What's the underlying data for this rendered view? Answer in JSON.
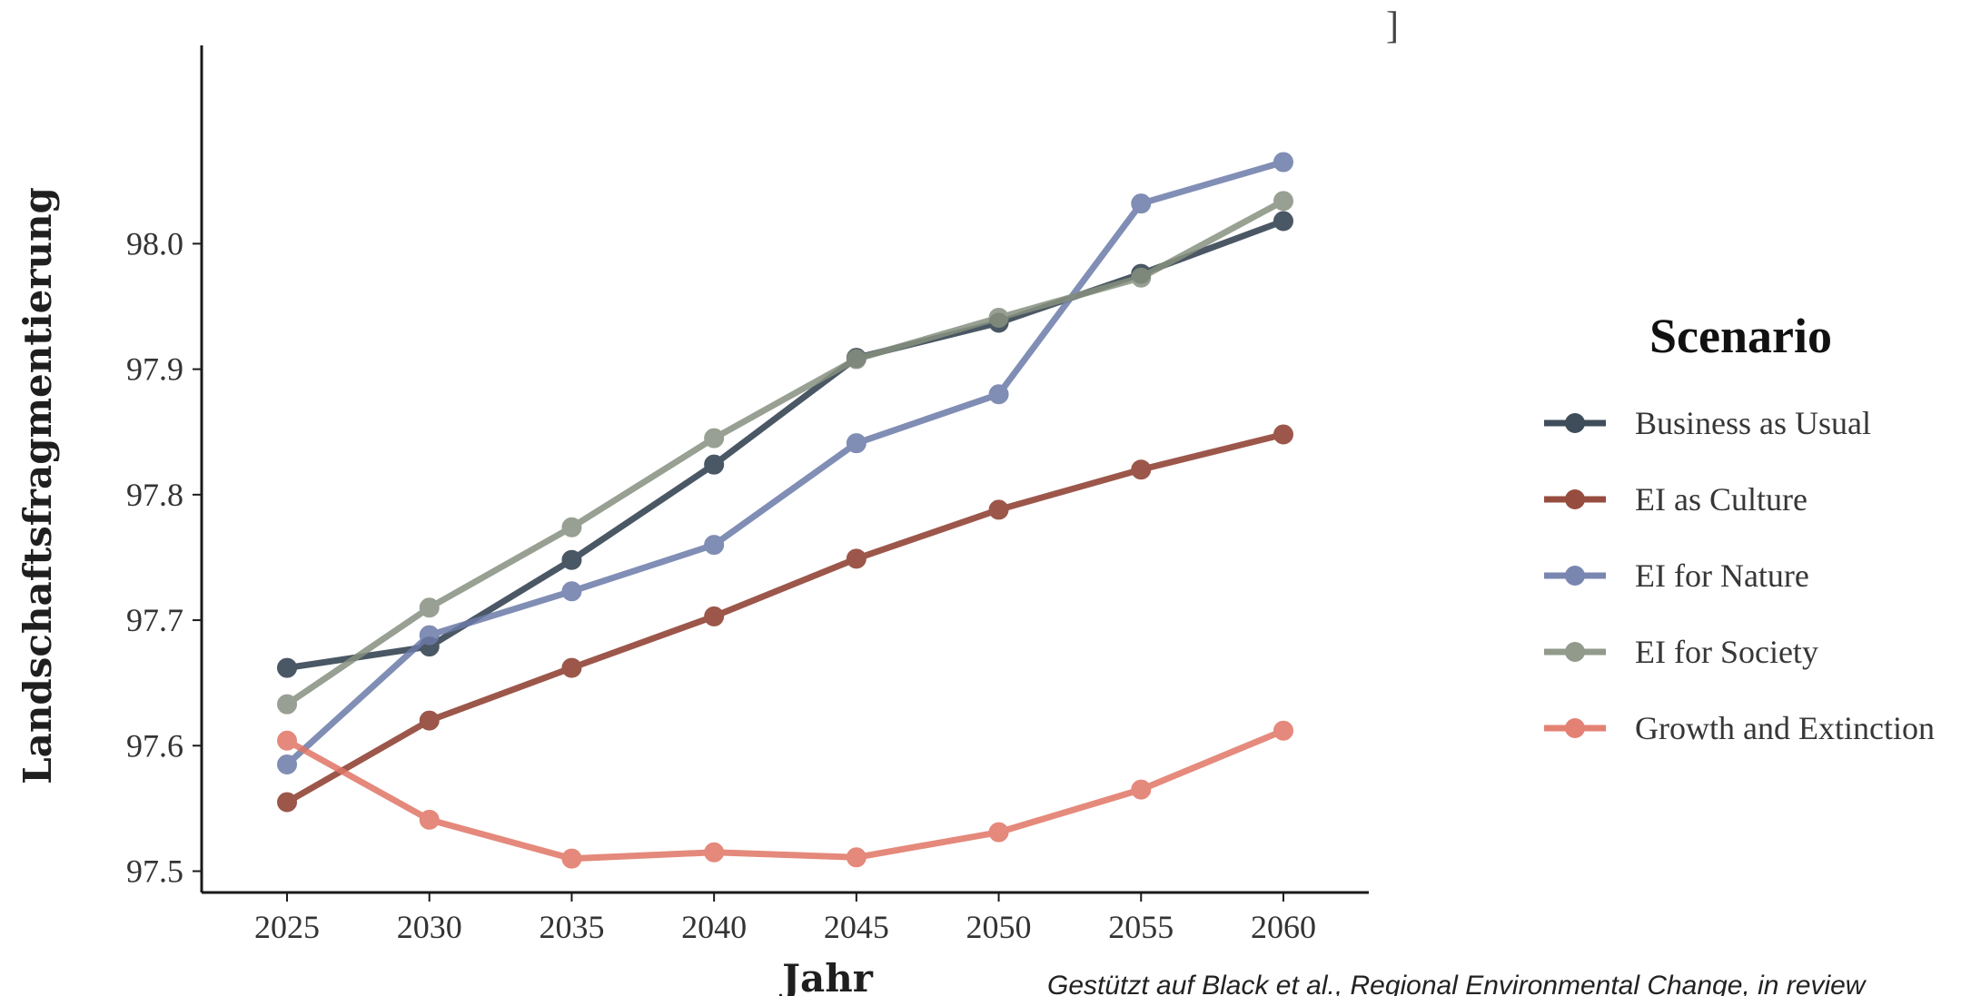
{
  "chart_data": {
    "type": "line",
    "title": "",
    "xlabel": "Jahr",
    "ylabel": "Landschaftsfragmentierung",
    "x": [
      2025,
      2030,
      2035,
      2040,
      2045,
      2050,
      2055,
      2060
    ],
    "x_ticks": [
      "2025",
      "2030",
      "2035",
      "2040",
      "2045",
      "2050",
      "2055",
      "2060"
    ],
    "y_ticks": [
      "97.5",
      "97.6",
      "97.7",
      "97.8",
      "97.9",
      "98.0"
    ],
    "xlim": [
      2022,
      2063
    ],
    "ylim": [
      97.483,
      98.158
    ],
    "grid": false,
    "legend_title": "Scenario",
    "legend_position": "right",
    "series": [
      {
        "name": "Business as Usual",
        "color": "#2b3a4a",
        "values": [
          97.662,
          97.679,
          97.748,
          97.824,
          97.909,
          97.937,
          97.976,
          98.018
        ]
      },
      {
        "name": "EI as Culture",
        "color": "#8b3a2b",
        "values": [
          97.555,
          97.62,
          97.662,
          97.703,
          97.749,
          97.788,
          97.82,
          97.848
        ]
      },
      {
        "name": "EI for Nature",
        "color": "#6b7aa8",
        "values": [
          97.585,
          97.688,
          97.723,
          97.76,
          97.841,
          97.88,
          98.032,
          98.065
        ]
      },
      {
        "name": "EI for Society",
        "color": "#86907f",
        "values": [
          97.633,
          97.71,
          97.774,
          97.845,
          97.908,
          97.941,
          97.973,
          98.034
        ]
      },
      {
        "name": "Growth and Extinction",
        "color": "#e07565",
        "values": [
          97.604,
          97.541,
          97.51,
          97.515,
          97.511,
          97.531,
          97.565,
          97.612
        ]
      }
    ]
  },
  "source_note": "Gestützt auf Black et al., Regional Environmental Change, in review",
  "stray_mark": "]"
}
